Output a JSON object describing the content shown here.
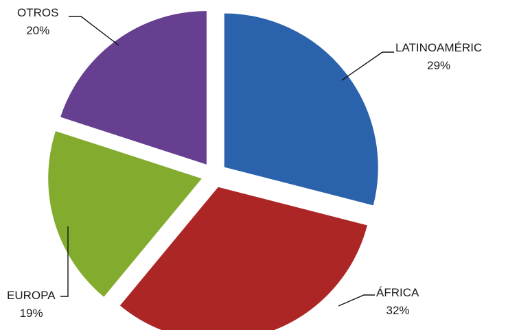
{
  "chart_data": {
    "type": "pie",
    "title": "",
    "slices": [
      {
        "label": "LATINOAMÉRIC",
        "value": 29,
        "value_label": "29%",
        "color": "#2a63ab"
      },
      {
        "label": "ÁFRICA",
        "value": 32,
        "value_label": "32%",
        "color": "#ad2626"
      },
      {
        "label": "EUROPA",
        "value": 19,
        "value_label": "19%",
        "color": "#83ac2f"
      },
      {
        "label": "OTROS",
        "value": 20,
        "value_label": "20%",
        "color": "#673f91"
      }
    ],
    "start_angle": "top, clockwise",
    "exploded": true,
    "legend": "none",
    "data_labels": "outside with leader lines"
  }
}
